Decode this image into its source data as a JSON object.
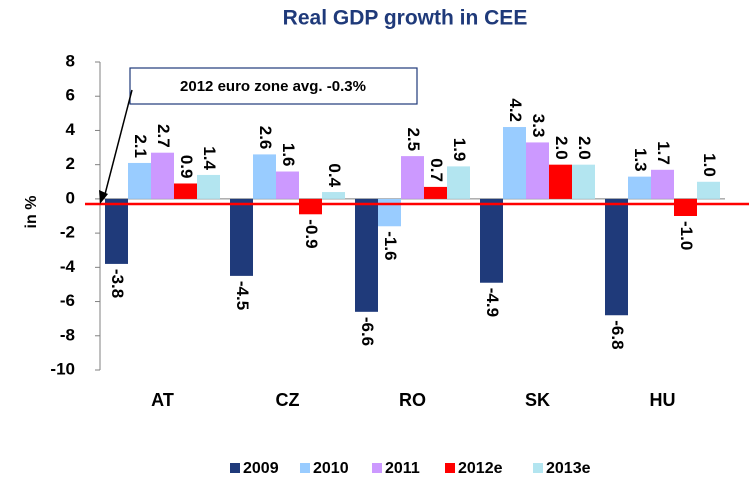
{
  "chart_data": {
    "type": "bar",
    "title": "Real GDP growth in CEE",
    "y_label": "in %",
    "categories": [
      "AT",
      "CZ",
      "RO",
      "SK",
      "HU"
    ],
    "series": [
      {
        "name": "2009",
        "color": "#1f3a7a",
        "values": [
          -3.8,
          -4.5,
          -6.6,
          -4.9,
          -6.8
        ],
        "value_labels": [
          "-3.8",
          "-4.5",
          "-6.6",
          "-4.9",
          "-6.8"
        ]
      },
      {
        "name": "2010",
        "color": "#99ccff",
        "values": [
          2.1,
          2.6,
          -1.6,
          4.2,
          1.3
        ],
        "value_labels": [
          "2.1",
          "2.6",
          "-1.6",
          "4.2",
          "1.3"
        ]
      },
      {
        "name": "2011",
        "color": "#cc99ff",
        "values": [
          2.7,
          1.6,
          2.5,
          3.3,
          1.7
        ],
        "value_labels": [
          "2.7",
          "1.6",
          "2.5",
          "3.3",
          "1.7"
        ]
      },
      {
        "name": "2012e",
        "color": "#ff0000",
        "values": [
          0.9,
          -0.9,
          0.7,
          2.0,
          -1.0
        ],
        "value_labels": [
          "0.9",
          "-0.9",
          "0.7",
          "2.0",
          "-1.0"
        ]
      },
      {
        "name": "2013e",
        "color": "#b3e5f0",
        "values": [
          1.4,
          0.4,
          1.9,
          2.0,
          1.0
        ],
        "value_labels": [
          "1.4",
          "0.4",
          "1.9",
          "2.0",
          "1.0"
        ]
      }
    ],
    "reference_line": {
      "value": -0.3,
      "color": "#ff0000"
    },
    "annotation": "2012 euro zone avg. -0.3%",
    "ylim": [
      -10,
      8
    ],
    "yticks": [
      -10,
      -8,
      -6,
      -4,
      -2,
      0,
      2,
      4,
      6,
      8
    ],
    "legend": "bottom"
  }
}
